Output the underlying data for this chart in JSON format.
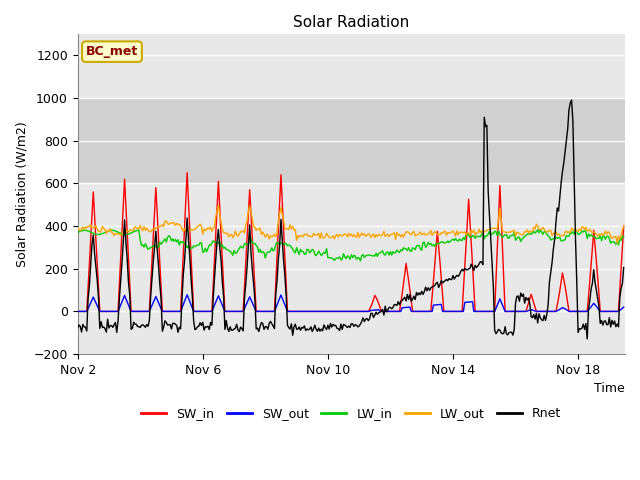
{
  "title": "Solar Radiation",
  "ylabel": "Solar Radiation (W/m2)",
  "xlabel": "Time",
  "ylim": [
    -200,
    1300
  ],
  "yticks": [
    -200,
    0,
    200,
    400,
    600,
    800,
    1000,
    1200
  ],
  "plot_bg_color": "#e8e8e8",
  "shaded_band": [
    600,
    1000
  ],
  "shaded_color": "#d0d0d0",
  "grid_color": "#cccccc",
  "series_colors": {
    "SW_in": "#ff0000",
    "SW_out": "#0000ff",
    "LW_in": "#00cc00",
    "LW_out": "#ffa500",
    "Rnet": "#000000"
  },
  "annotation_text": "BC_met",
  "annotation_color": "#8b0000",
  "annotation_bg": "#ffffcc",
  "annotation_border": "#ccaa00",
  "tick_positions": [
    2,
    6,
    10,
    14,
    18
  ],
  "tick_labels": [
    "Nov 2",
    "Nov 6",
    "Nov 10",
    "Nov 14",
    "Nov 18"
  ],
  "xlim": [
    2,
    19.5
  ],
  "figsize": [
    6.4,
    4.8
  ],
  "dpi": 100
}
